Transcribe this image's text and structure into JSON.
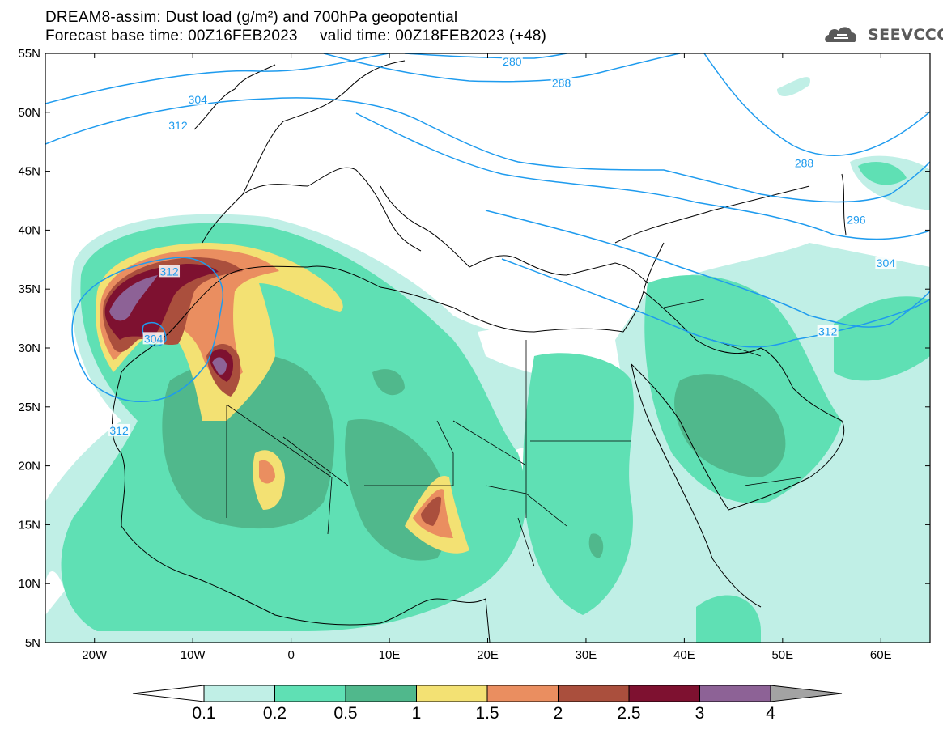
{
  "title": {
    "line1": "DREAM8-assim: Dust load (g/m²) and 700hPa geopotential",
    "line2": "Forecast base time: 00Z16FEB2023     valid time: 00Z18FEB2023 (+48)"
  },
  "logo": {
    "text": "SEEVCCC",
    "icon": "cloud-icon"
  },
  "map": {
    "lon_range": [
      -25,
      65
    ],
    "lat_range": [
      5,
      55
    ],
    "x_ticks": [
      {
        "lon": -20,
        "label": "20W"
      },
      {
        "lon": -10,
        "label": "10W"
      },
      {
        "lon": 0,
        "label": "0"
      },
      {
        "lon": 10,
        "label": "10E"
      },
      {
        "lon": 20,
        "label": "20E"
      },
      {
        "lon": 30,
        "label": "30E"
      },
      {
        "lon": 40,
        "label": "40E"
      },
      {
        "lon": 50,
        "label": "50E"
      },
      {
        "lon": 60,
        "label": "60E"
      }
    ],
    "y_ticks": [
      {
        "lat": 55,
        "label": "55N"
      },
      {
        "lat": 50,
        "label": "50N"
      },
      {
        "lat": 45,
        "label": "45N"
      },
      {
        "lat": 40,
        "label": "40N"
      },
      {
        "lat": 35,
        "label": "35N"
      },
      {
        "lat": 30,
        "label": "30N"
      },
      {
        "lat": 25,
        "label": "25N"
      },
      {
        "lat": 20,
        "label": "20N"
      },
      {
        "lat": 15,
        "label": "15N"
      },
      {
        "lat": 10,
        "label": "10N"
      },
      {
        "lat": 5,
        "label": "5N"
      }
    ],
    "contour_labels": [
      {
        "text": "304",
        "lon": -9.5,
        "lat": 51.1
      },
      {
        "text": "312",
        "lon": -11.5,
        "lat": 48.9
      },
      {
        "text": "280",
        "lon": 22.5,
        "lat": 54.3
      },
      {
        "text": "288",
        "lon": 27.5,
        "lat": 52.5
      },
      {
        "text": "288",
        "lon": 52.2,
        "lat": 45.7
      },
      {
        "text": "296",
        "lon": 57.5,
        "lat": 40.9
      },
      {
        "text": "304",
        "lon": 60.5,
        "lat": 37.2
      },
      {
        "text": "312",
        "lon": 54.6,
        "lat": 31.4
      },
      {
        "text": "312",
        "lon": -12.4,
        "lat": 36.5
      },
      {
        "text": "304",
        "lon": -14.0,
        "lat": 30.8
      },
      {
        "text": "312",
        "lon": -17.5,
        "lat": 23.0
      }
    ]
  },
  "colorbar": {
    "labels": [
      "0.1",
      "0.2",
      "0.5",
      "1",
      "1.5",
      "2",
      "2.5",
      "3",
      "4"
    ],
    "colors": [
      "#c0efe6",
      "#5fe0b4",
      "#50b88c",
      "#f3e173",
      "#ea8e60",
      "#aa4f3d",
      "#7e1130",
      "#8d6296"
    ],
    "under_color": "#ffffff",
    "over_color": "#a3a3a3"
  },
  "colors": {
    "contour": "#1e9bee",
    "coast": "#000000"
  }
}
